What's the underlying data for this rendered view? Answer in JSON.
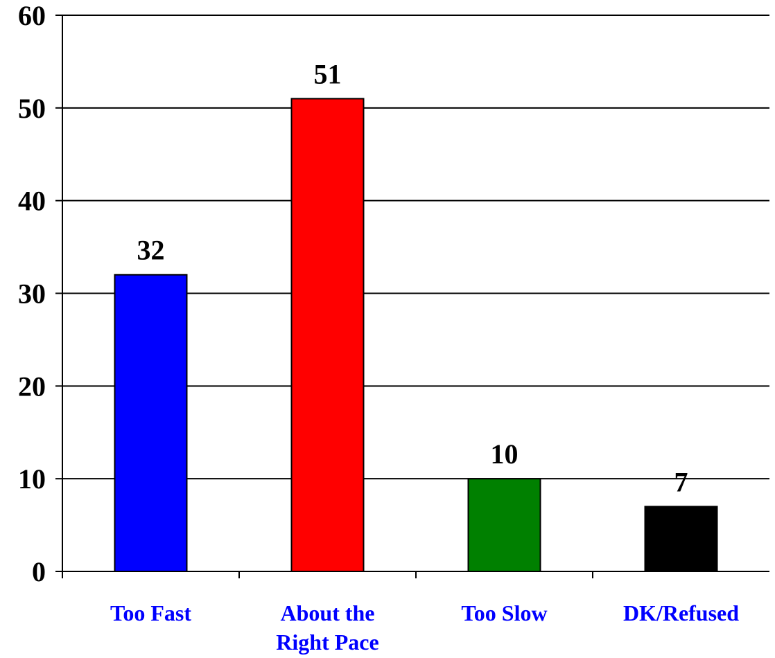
{
  "chart_data": {
    "type": "bar",
    "categories": [
      [
        "Too Fast"
      ],
      [
        "About the",
        "Right Pace"
      ],
      [
        "Too Slow"
      ],
      [
        "DK/Refused"
      ]
    ],
    "values": [
      32,
      51,
      10,
      7
    ],
    "bar_colors": [
      "#0000ff",
      "#ff0000",
      "#008000",
      "#000000"
    ],
    "category_label_color": "#0000ff",
    "ylim": [
      0,
      60
    ],
    "yticks": [
      0,
      10,
      20,
      30,
      40,
      50,
      60
    ],
    "grid": true,
    "legend": "none",
    "title": "",
    "xlabel": "",
    "ylabel": ""
  }
}
